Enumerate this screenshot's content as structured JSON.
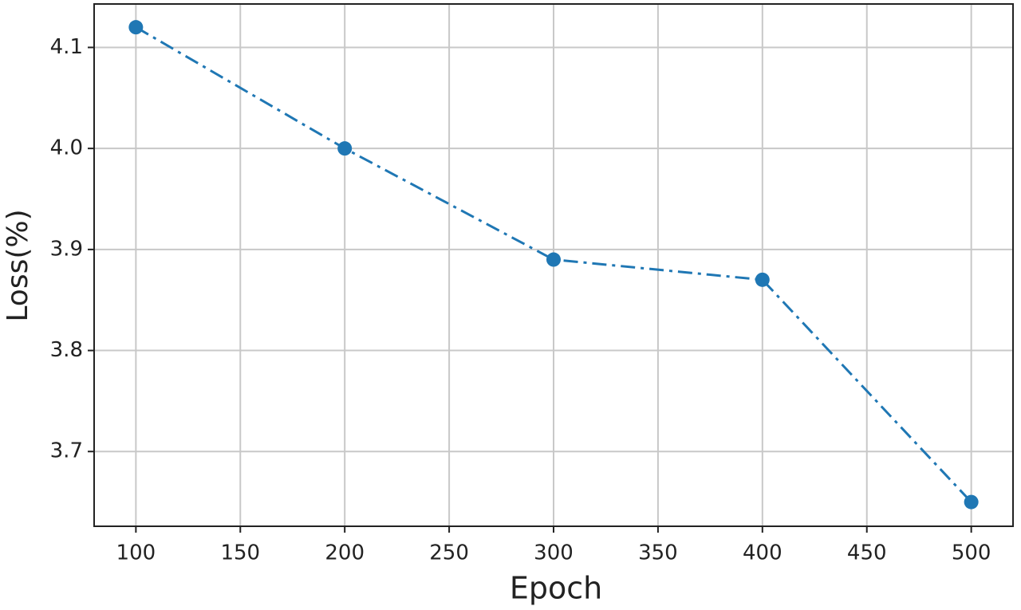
{
  "chart_data": {
    "type": "line",
    "x": [
      100,
      200,
      300,
      400,
      500
    ],
    "series": [
      {
        "name": "Loss",
        "color": "#1f77b4",
        "values": [
          4.12,
          4.0,
          3.89,
          3.87,
          3.65
        ]
      }
    ],
    "xlabel": "Epoch",
    "ylabel": "Loss(%)",
    "xlim": [
      80,
      520
    ],
    "ylim": [
      3.626,
      4.143
    ],
    "xticks": [
      100,
      150,
      200,
      250,
      300,
      350,
      400,
      450,
      500
    ],
    "yticks": [
      3.7,
      3.8,
      3.9,
      {
        "value": 4,
        "label": "4.0"
      },
      4.1
    ],
    "grid": true,
    "line_style": "dash-dot",
    "marker": "circle"
  }
}
